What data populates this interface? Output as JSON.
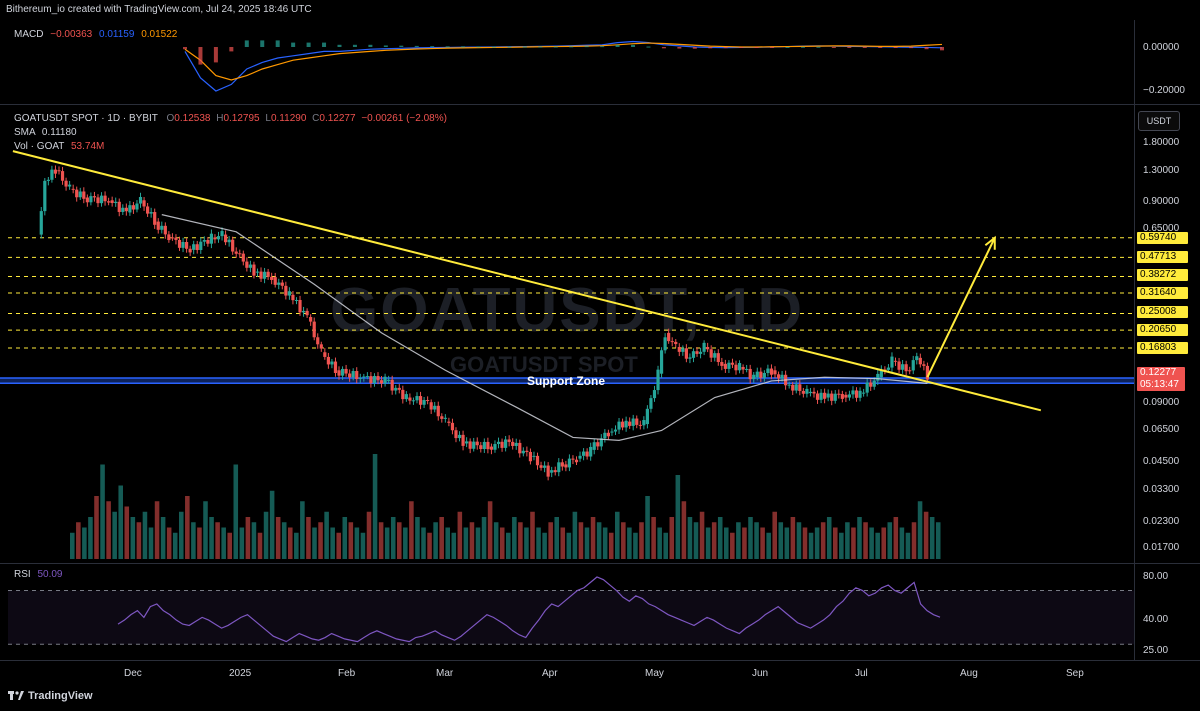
{
  "header": {
    "credit": "Bithereum_io created with TradingView.com, Jul 24, 2025 18:46 UTC"
  },
  "macd": {
    "label": "MACD",
    "v1": "−0.00363",
    "v2": "0.01159",
    "v3": "0.01522",
    "axis_top": "0.00000",
    "axis_bottom": "−0.20000"
  },
  "main": {
    "symbol": "GOATUSDT SPOT · 1D · BYBIT",
    "o_label": "O",
    "o_value": "0.12538",
    "h_label": "H",
    "h_value": "0.12795",
    "l_label": "L",
    "l_value": "0.11290",
    "c_label": "C",
    "c_value": "0.12277",
    "change": "−0.00261 (−2.08%)",
    "sma_label": "SMA",
    "sma_value": "0.11180",
    "vol_label": "Vol · GOAT",
    "vol_value": "53.74M",
    "watermark_big": "GOATUSDT, 1D",
    "watermark_small": "GOATUSDT SPOT",
    "support_label": "Support Zone",
    "currency_button": "USDT",
    "price_axis": [
      "1.80000",
      "1.30000",
      "0.90000",
      "0.65000",
      "0.09000",
      "0.06500",
      "0.04500",
      "0.03300",
      "0.02300",
      "0.01700"
    ],
    "levels": [
      "0.59740",
      "0.47713",
      "0.38272",
      "0.31640",
      "0.25008",
      "0.20650",
      "0.16803"
    ],
    "current_price": "0.12277",
    "countdown": "05:13:47"
  },
  "rsi": {
    "label": "RSI",
    "value": "50.09",
    "axis": [
      "80.00",
      "40.00",
      "25.00"
    ]
  },
  "time_axis": [
    "Dec",
    "2025",
    "Feb",
    "Mar",
    "Apr",
    "May",
    "Jun",
    "Jul",
    "Aug",
    "Sep"
  ],
  "footer": {
    "brand": "TradingView"
  },
  "colors": {
    "trendline": "#ffeb3b",
    "up": "#26a69a",
    "down": "#ef5350",
    "sma": "#d1d4dc",
    "support": "#2962ff",
    "rsi": "#7e57c2"
  },
  "chart_data": {
    "type": "candlestick",
    "symbol": "GOATUSDT SPOT",
    "timeframe": "1D",
    "exchange": "BYBIT",
    "price_scale": "log",
    "x_range": [
      "2024-11-10",
      "2025-09-20"
    ],
    "last_candle": {
      "date": "2025-07-24",
      "open": 0.12538,
      "high": 0.12795,
      "low": 0.1129,
      "close": 0.12277
    },
    "close_series": [
      {
        "x": "2024-11-15",
        "y": 0.62
      },
      {
        "x": "2024-11-17",
        "y": 1.15
      },
      {
        "x": "2024-11-20",
        "y": 1.3
      },
      {
        "x": "2024-11-24",
        "y": 1.05
      },
      {
        "x": "2024-11-28",
        "y": 0.95
      },
      {
        "x": "2024-12-05",
        "y": 0.92
      },
      {
        "x": "2024-12-10",
        "y": 0.8
      },
      {
        "x": "2024-12-14",
        "y": 0.92
      },
      {
        "x": "2024-12-18",
        "y": 0.72
      },
      {
        "x": "2024-12-22",
        "y": 0.6
      },
      {
        "x": "2024-12-28",
        "y": 0.52
      },
      {
        "x": "2025-01-03",
        "y": 0.6
      },
      {
        "x": "2025-01-06",
        "y": 0.62
      },
      {
        "x": "2025-01-10",
        "y": 0.5
      },
      {
        "x": "2025-01-15",
        "y": 0.4
      },
      {
        "x": "2025-01-20",
        "y": 0.38
      },
      {
        "x": "2025-01-25",
        "y": 0.31
      },
      {
        "x": "2025-01-30",
        "y": 0.24
      },
      {
        "x": "2025-02-03",
        "y": 0.16
      },
      {
        "x": "2025-02-07",
        "y": 0.13
      },
      {
        "x": "2025-02-14",
        "y": 0.12
      },
      {
        "x": "2025-02-21",
        "y": 0.115
      },
      {
        "x": "2025-02-27",
        "y": 0.095
      },
      {
        "x": "2025-03-05",
        "y": 0.09
      },
      {
        "x": "2025-03-10",
        "y": 0.072
      },
      {
        "x": "2025-03-15",
        "y": 0.056
      },
      {
        "x": "2025-03-22",
        "y": 0.054
      },
      {
        "x": "2025-03-28",
        "y": 0.057
      },
      {
        "x": "2025-04-03",
        "y": 0.048
      },
      {
        "x": "2025-04-08",
        "y": 0.04
      },
      {
        "x": "2025-04-12",
        "y": 0.044
      },
      {
        "x": "2025-04-16",
        "y": 0.047
      },
      {
        "x": "2025-04-20",
        "y": 0.052
      },
      {
        "x": "2025-04-25",
        "y": 0.064
      },
      {
        "x": "2025-04-30",
        "y": 0.072
      },
      {
        "x": "2025-05-05",
        "y": 0.07
      },
      {
        "x": "2025-05-09",
        "y": 0.125
      },
      {
        "x": "2025-05-11",
        "y": 0.2
      },
      {
        "x": "2025-05-14",
        "y": 0.17
      },
      {
        "x": "2025-05-18",
        "y": 0.15
      },
      {
        "x": "2025-05-22",
        "y": 0.17
      },
      {
        "x": "2025-05-27",
        "y": 0.14
      },
      {
        "x": "2025-06-01",
        "y": 0.135
      },
      {
        "x": "2025-06-05",
        "y": 0.12
      },
      {
        "x": "2025-06-10",
        "y": 0.13
      },
      {
        "x": "2025-06-15",
        "y": 0.11
      },
      {
        "x": "2025-06-20",
        "y": 0.1
      },
      {
        "x": "2025-06-25",
        "y": 0.095
      },
      {
        "x": "2025-06-30",
        "y": 0.098
      },
      {
        "x": "2025-07-05",
        "y": 0.1
      },
      {
        "x": "2025-07-10",
        "y": 0.12
      },
      {
        "x": "2025-07-14",
        "y": 0.145
      },
      {
        "x": "2025-07-18",
        "y": 0.13
      },
      {
        "x": "2025-07-21",
        "y": 0.15
      },
      {
        "x": "2025-07-24",
        "y": 0.12277
      }
    ],
    "sma_series": [
      {
        "x": "2024-12-20",
        "y": 0.78
      },
      {
        "x": "2025-01-10",
        "y": 0.64
      },
      {
        "x": "2025-02-01",
        "y": 0.35
      },
      {
        "x": "2025-02-20",
        "y": 0.2
      },
      {
        "x": "2025-03-10",
        "y": 0.13
      },
      {
        "x": "2025-03-30",
        "y": 0.085
      },
      {
        "x": "2025-04-15",
        "y": 0.06
      },
      {
        "x": "2025-04-28",
        "y": 0.058
      },
      {
        "x": "2025-05-10",
        "y": 0.065
      },
      {
        "x": "2025-05-25",
        "y": 0.095
      },
      {
        "x": "2025-06-10",
        "y": 0.115
      },
      {
        "x": "2025-06-25",
        "y": 0.12
      },
      {
        "x": "2025-07-10",
        "y": 0.118
      },
      {
        "x": "2025-07-24",
        "y": 0.1118
      }
    ],
    "trendline": {
      "from": {
        "x": "2024-11-08",
        "y": 1.62
      },
      "to": {
        "x": "2025-08-25",
        "y": 0.082
      }
    },
    "projection_arrow": {
      "from": {
        "x": "2025-07-24",
        "y": 0.12
      },
      "to": {
        "x": "2025-08-12",
        "y": 0.5974
      }
    },
    "support_zone": [
      0.112,
      0.119
    ],
    "horizontal_levels": [
      0.5974,
      0.47713,
      0.38272,
      0.3164,
      0.25008,
      0.2065,
      0.16803
    ],
    "volume_panel": {
      "type": "bar",
      "values": [
        25,
        35,
        30,
        40,
        60,
        90,
        55,
        45,
        70,
        50,
        40,
        35,
        45,
        30,
        55,
        40,
        30,
        25,
        45,
        60,
        35,
        30,
        55,
        40,
        35,
        30,
        25,
        90,
        30,
        40,
        35,
        25,
        45,
        65,
        40,
        35,
        30,
        25,
        55,
        40,
        30,
        35,
        45,
        30,
        25,
        40,
        35,
        30,
        25,
        45,
        100,
        35,
        30,
        40,
        35,
        30,
        55,
        40,
        30,
        25,
        35,
        40,
        30,
        25,
        45,
        30,
        35,
        30,
        40,
        55,
        35,
        30,
        25,
        40,
        35,
        30,
        45,
        30,
        25,
        35,
        40,
        30,
        25,
        45,
        35,
        30,
        40,
        35,
        30,
        25,
        45,
        35,
        30,
        25,
        35,
        60,
        40,
        30,
        25,
        40,
        80,
        55,
        40,
        35,
        45,
        30,
        35,
        40,
        30,
        25,
        35,
        30,
        40,
        35,
        30,
        25,
        45,
        35,
        30,
        40,
        35,
        30,
        25,
        30,
        35,
        40,
        30,
        25,
        35,
        30,
        40,
        35,
        30,
        25,
        30,
        35,
        40,
        30,
        25,
        35,
        55,
        45,
        40,
        35
      ]
    },
    "rsi_panel": {
      "type": "line",
      "ylim": [
        25,
        80
      ],
      "bands": [
        30,
        70
      ],
      "values": [
        45,
        48,
        52,
        55,
        50,
        58,
        60,
        55,
        52,
        48,
        45,
        44,
        47,
        50,
        48,
        45,
        42,
        44,
        47,
        50,
        52,
        48,
        44,
        40,
        36,
        34,
        32,
        35,
        38,
        36,
        34,
        33,
        35,
        38,
        36,
        34,
        33,
        32,
        35,
        38,
        40,
        38,
        36,
        34,
        33,
        32,
        35,
        36,
        38,
        40,
        37,
        35,
        33,
        36,
        40,
        44,
        48,
        52,
        50,
        47,
        44,
        40,
        37,
        35,
        42,
        48,
        55,
        60,
        58,
        62,
        66,
        70,
        72,
        76,
        80,
        78,
        74,
        70,
        65,
        62,
        66,
        64,
        60,
        58,
        55,
        52,
        50,
        48,
        46,
        44,
        47,
        50,
        48,
        45,
        42,
        40,
        38,
        42,
        45,
        48,
        52,
        55,
        58,
        54,
        50,
        46,
        44,
        42,
        45,
        48,
        52,
        58,
        62,
        68,
        72,
        70,
        66,
        68,
        72,
        74,
        70,
        68,
        72,
        76,
        60,
        55,
        52,
        50.09
      ]
    },
    "macd_panel": {
      "type": "line",
      "series": [
        {
          "values": [
            -0.02,
            -0.14,
            -0.2,
            -0.17,
            -0.1,
            -0.07,
            -0.05,
            -0.04,
            -0.03,
            -0.02,
            -0.02,
            -0.015,
            -0.01,
            -0.008,
            -0.006,
            -0.004,
            -0.003,
            -0.002,
            -0.001,
            -0.0005,
            0.0,
            0.001,
            0.002,
            0.003,
            0.004,
            0.006,
            0.008,
            0.01,
            0.02,
            0.025,
            0.02,
            0.01,
            0.005,
            0.0,
            -0.002,
            -0.003,
            -0.002,
            -0.001,
            0.0,
            0.002,
            0.004,
            0.005,
            0.004,
            0.003,
            0.002,
            0.001,
            0.0,
            -0.001,
            -0.002,
            -0.00363
          ]
        },
        {
          "values": [
            -0.01,
            -0.06,
            -0.13,
            -0.15,
            -0.13,
            -0.1,
            -0.08,
            -0.06,
            -0.05,
            -0.04,
            -0.03,
            -0.025,
            -0.02,
            -0.015,
            -0.012,
            -0.009,
            -0.007,
            -0.005,
            -0.004,
            -0.003,
            -0.002,
            -0.001,
            0.0,
            0.001,
            0.002,
            0.003,
            0.004,
            0.006,
            0.01,
            0.015,
            0.018,
            0.016,
            0.012,
            0.008,
            0.004,
            0.002,
            0.0,
            0.0,
            0.001,
            0.002,
            0.003,
            0.004,
            0.005,
            0.005,
            0.004,
            0.003,
            0.003,
            0.004,
            0.008,
            0.01159
          ]
        }
      ]
    }
  }
}
